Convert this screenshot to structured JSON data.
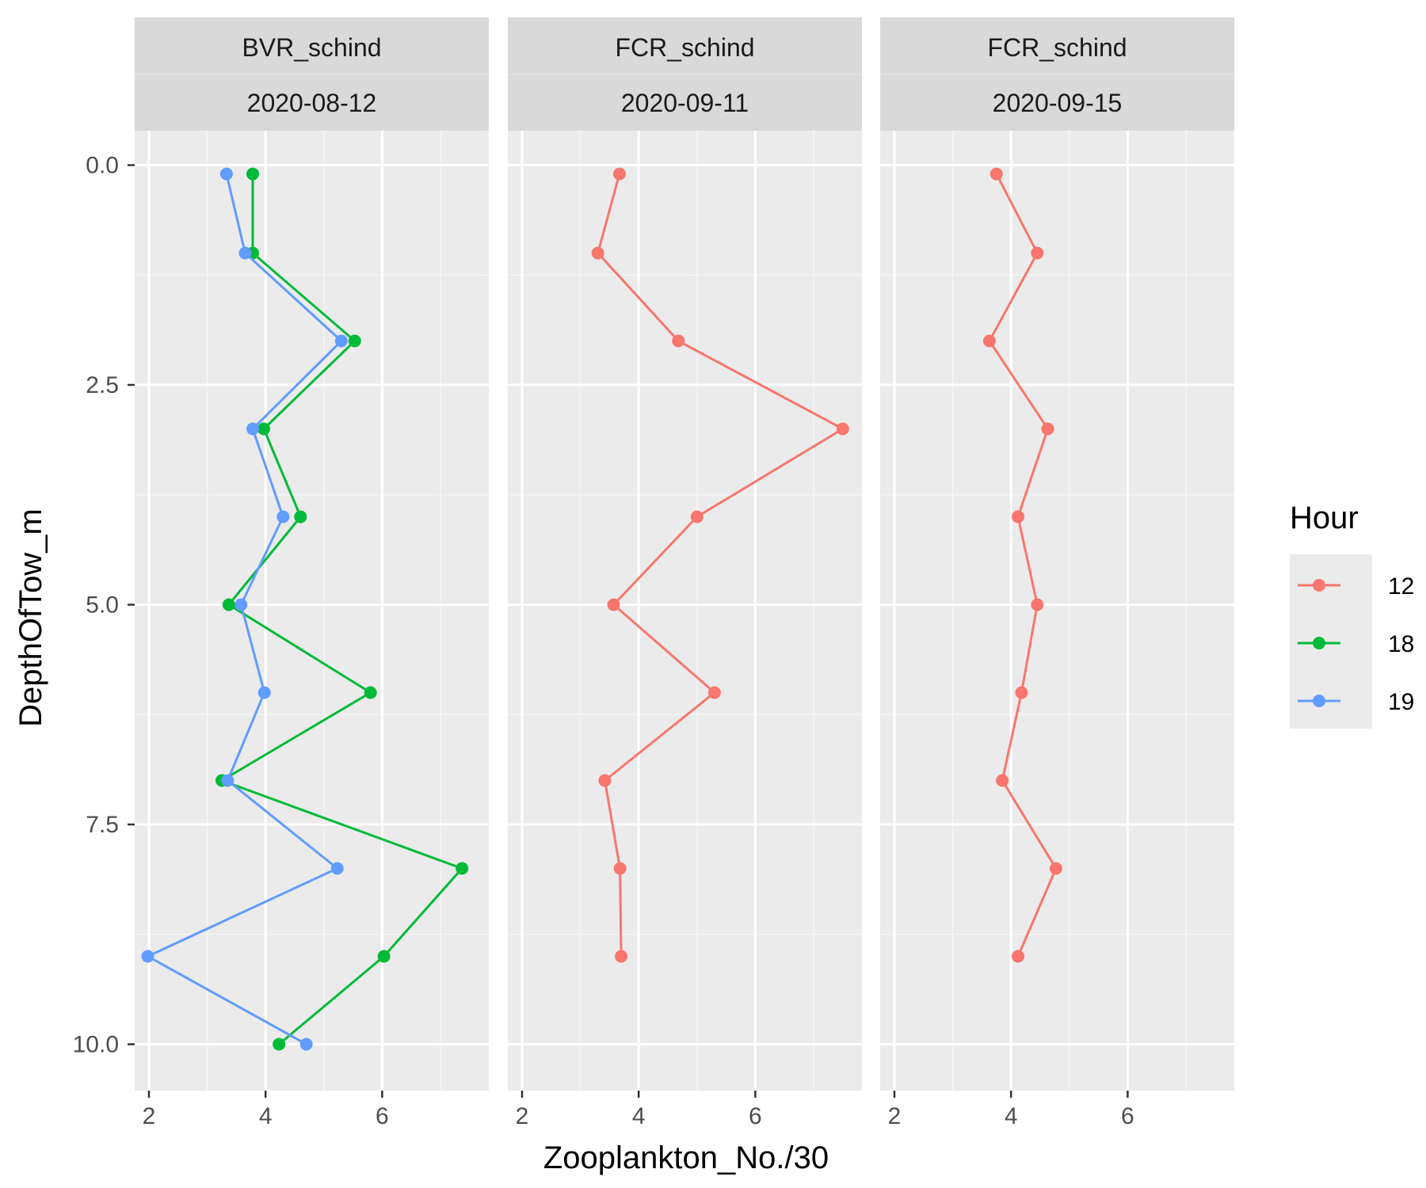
{
  "chart_data": {
    "type": "line",
    "xlabel": "Zooplankton_No./30",
    "ylabel": "DepthOfTow_m",
    "xlim": [
      1.75,
      7.8
    ],
    "ylim": [
      0,
      10.4
    ],
    "y_reversed": true,
    "x_ticks": [
      2,
      4,
      6
    ],
    "x_tick_labels": [
      "2",
      "4",
      "6"
    ],
    "y_ticks": [
      0,
      2.5,
      5,
      7.5,
      10
    ],
    "y_tick_labels": [
      "0.0",
      "2.5",
      "5.0",
      "7.5",
      "10.0"
    ],
    "grid": true,
    "legend": {
      "title": "Hour",
      "position": "right",
      "entries": [
        {
          "label": "12",
          "color": "#F8766D"
        },
        {
          "label": "18",
          "color": "#00BA38"
        },
        {
          "label": "19",
          "color": "#619CFF"
        }
      ]
    },
    "panels": [
      {
        "strip_top": "BVR_schind",
        "strip_bottom": "2020-08-12",
        "series": [
          {
            "name": "18",
            "color": "#00BA38",
            "points": [
              [
                3.78,
                0.1
              ],
              [
                3.78,
                1.0
              ],
              [
                5.53,
                2.0
              ],
              [
                3.97,
                3.0
              ],
              [
                4.6,
                4.0
              ],
              [
                3.37,
                5.0
              ],
              [
                5.8,
                6.0
              ],
              [
                3.25,
                7.0
              ],
              [
                7.37,
                8.0
              ],
              [
                6.03,
                9.0
              ],
              [
                4.23,
                10.0
              ]
            ]
          },
          {
            "name": "19",
            "color": "#619CFF",
            "points": [
              [
                3.33,
                0.1
              ],
              [
                3.65,
                1.0
              ],
              [
                5.3,
                2.0
              ],
              [
                3.78,
                3.0
              ],
              [
                4.3,
                4.0
              ],
              [
                3.58,
                5.0
              ],
              [
                3.98,
                6.0
              ],
              [
                3.35,
                7.0
              ],
              [
                5.23,
                8.0
              ],
              [
                1.98,
                9.0
              ],
              [
                4.7,
                10.0
              ]
            ]
          }
        ]
      },
      {
        "strip_top": "FCR_schind",
        "strip_bottom": "2020-09-11",
        "series": [
          {
            "name": "12",
            "color": "#F8766D",
            "points": [
              [
                3.67,
                0.1
              ],
              [
                3.3,
                1.0
              ],
              [
                4.68,
                2.0
              ],
              [
                7.5,
                3.0
              ],
              [
                5.0,
                4.0
              ],
              [
                3.57,
                5.0
              ],
              [
                5.3,
                6.0
              ],
              [
                3.42,
                7.0
              ],
              [
                3.68,
                8.0
              ],
              [
                3.7,
                9.0
              ]
            ]
          }
        ]
      },
      {
        "strip_top": "FCR_schind",
        "strip_bottom": "2020-09-15",
        "series": [
          {
            "name": "12",
            "color": "#F8766D",
            "points": [
              [
                3.75,
                0.1
              ],
              [
                4.45,
                1.0
              ],
              [
                3.63,
                2.0
              ],
              [
                4.63,
                3.0
              ],
              [
                4.12,
                4.0
              ],
              [
                4.45,
                5.0
              ],
              [
                4.18,
                6.0
              ],
              [
                3.85,
                7.0
              ],
              [
                4.77,
                8.0
              ],
              [
                4.12,
                9.0
              ]
            ]
          }
        ]
      }
    ]
  }
}
